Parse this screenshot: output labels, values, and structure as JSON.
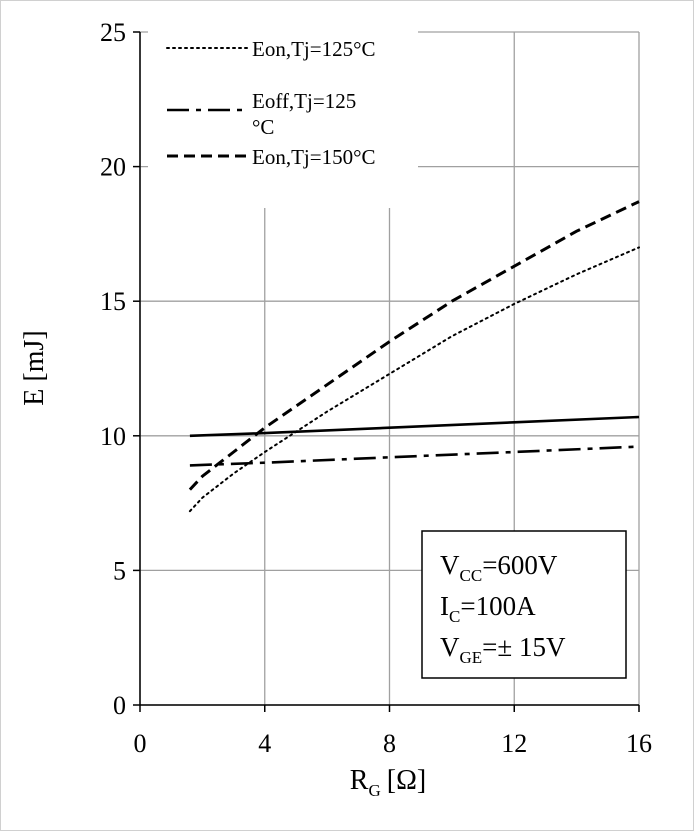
{
  "chart_data": {
    "type": "line",
    "xlabel": "R",
    "xlabel_sub": "G",
    "xlabel_unit": "[Ω]",
    "ylabel": "E [mJ]",
    "xlim": [
      0,
      16
    ],
    "ylim": [
      0,
      25
    ],
    "xticks": [
      "0",
      "4",
      "8",
      "12",
      "16"
    ],
    "yticks": [
      "0",
      "5",
      "10",
      "15",
      "20",
      "25"
    ],
    "grid": true,
    "legend_position": "top-left",
    "legend": [
      {
        "label": "Eon,Tj=125°C",
        "style": "dotted"
      },
      {
        "label_line1": "Eoff,Tj=125",
        "label_line2": "°C",
        "style": "dash-dot"
      },
      {
        "label": "Eon,Tj=150°C",
        "style": "dashed"
      }
    ],
    "series": [
      {
        "name": "Eon,Tj=125°C",
        "style": "dotted",
        "x": [
          1.6,
          2,
          3,
          4,
          6,
          8,
          10,
          12,
          14,
          16
        ],
        "y": [
          7.2,
          7.7,
          8.6,
          9.4,
          10.9,
          12.3,
          13.7,
          14.9,
          16.0,
          17.0
        ]
      },
      {
        "name": "Eoff,Tj=125°C",
        "style": "dash-dot",
        "x": [
          1.6,
          4,
          8,
          12,
          16
        ],
        "y": [
          8.9,
          9.0,
          9.2,
          9.4,
          9.6
        ]
      },
      {
        "name": "Eon,Tj=150°C",
        "style": "dashed",
        "x": [
          1.6,
          2,
          3,
          4,
          6,
          8,
          10,
          12,
          14,
          16
        ],
        "y": [
          8.0,
          8.5,
          9.4,
          10.3,
          11.9,
          13.5,
          15.0,
          16.3,
          17.6,
          18.7
        ]
      },
      {
        "style": "solid",
        "x": [
          1.6,
          4,
          8,
          12,
          16
        ],
        "y": [
          10.0,
          10.1,
          10.3,
          10.5,
          10.7
        ]
      }
    ],
    "annotation": {
      "lines": [
        {
          "main": "V",
          "sub": "CC",
          "rest": "=600V"
        },
        {
          "main": "I",
          "sub": "C",
          "rest": "=100A"
        },
        {
          "main": "V",
          "sub": "GE",
          "rest": "=± 15V"
        }
      ]
    }
  }
}
